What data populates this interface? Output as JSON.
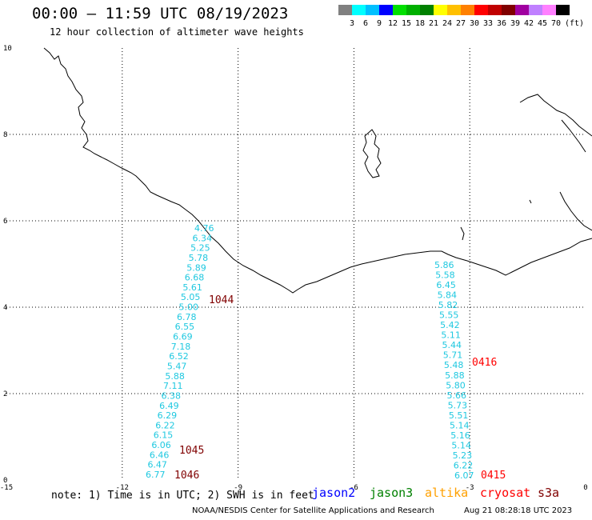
{
  "header": {
    "title": "00:00 – 11:59 UTC 08/19/2023",
    "subtitle": "12 hour collection of altimeter wave heights"
  },
  "legend": {
    "colors": [
      "#808080",
      "#00ffff",
      "#00c0ff",
      "#0000ff",
      "#00e000",
      "#00b000",
      "#008000",
      "#ffff00",
      "#ffc000",
      "#ff8000",
      "#ff0000",
      "#c00000",
      "#800000",
      "#a000a0",
      "#c080ff",
      "#ff80ff",
      "#000000"
    ],
    "labels": [
      "3",
      "6",
      "9",
      "12",
      "15",
      "18",
      "21",
      "24",
      "27",
      "30",
      "33",
      "36",
      "39",
      "42",
      "45",
      "70",
      "(ft)"
    ]
  },
  "map": {
    "lon_range": [
      -15,
      0
    ],
    "lat_range": [
      0,
      10
    ],
    "x_ticks": [
      "-15",
      "-12",
      "-9",
      "-6",
      "-3",
      "0"
    ],
    "y_ticks": [
      "10",
      "8",
      "6",
      "4",
      "2",
      "0"
    ],
    "west_track": {
      "values": [
        "4.76",
        "6.34",
        "5.25",
        "5.78",
        "5.89",
        "6.68",
        "5.61",
        "5.05",
        "5.00",
        "6.78",
        "6.55",
        "6.69",
        "7.18",
        "6.52",
        "5.47",
        "5.88",
        "7.11",
        "6.38",
        "6.49",
        "6.29",
        "6.22",
        "6.15",
        "6.06",
        "6.46",
        "6.47",
        "6.77"
      ],
      "times": [
        {
          "label": "1044",
          "color": "#800000"
        },
        {
          "label": "1045",
          "color": "#800000"
        },
        {
          "label": "1046",
          "color": "#800000"
        }
      ]
    },
    "east_track": {
      "values": [
        "5.86",
        "5.58",
        "6.45",
        "5.84",
        "5.82",
        "5.55",
        "5.42",
        "5.11",
        "5.44",
        "5.71",
        "5.48",
        "5.88",
        "5.80",
        "5.66",
        "5.73",
        "5.51",
        "5.14",
        "5.16",
        "5.14",
        "5.23",
        "6.22",
        "6.07"
      ],
      "times": [
        {
          "label": "0416",
          "color": "#ff0000"
        },
        {
          "label": "0415",
          "color": "#ff0000"
        }
      ]
    }
  },
  "footer": {
    "note": "note: 1) Time is in UTC; 2) SWH is in feet",
    "satellites": [
      {
        "name": "jason2",
        "color": "#0000ff"
      },
      {
        "name": "jason3",
        "color": "#008000"
      },
      {
        "name": "altika",
        "color": "#ffa000"
      },
      {
        "name": "cryosat",
        "color": "#ff0000"
      },
      {
        "name": "s3a",
        "color": "#800000"
      }
    ],
    "credit": "NOAA/NESDIS Center for Satellite Applications and Research",
    "timestamp": "Aug 21 08:28:18 UTC 2023"
  }
}
